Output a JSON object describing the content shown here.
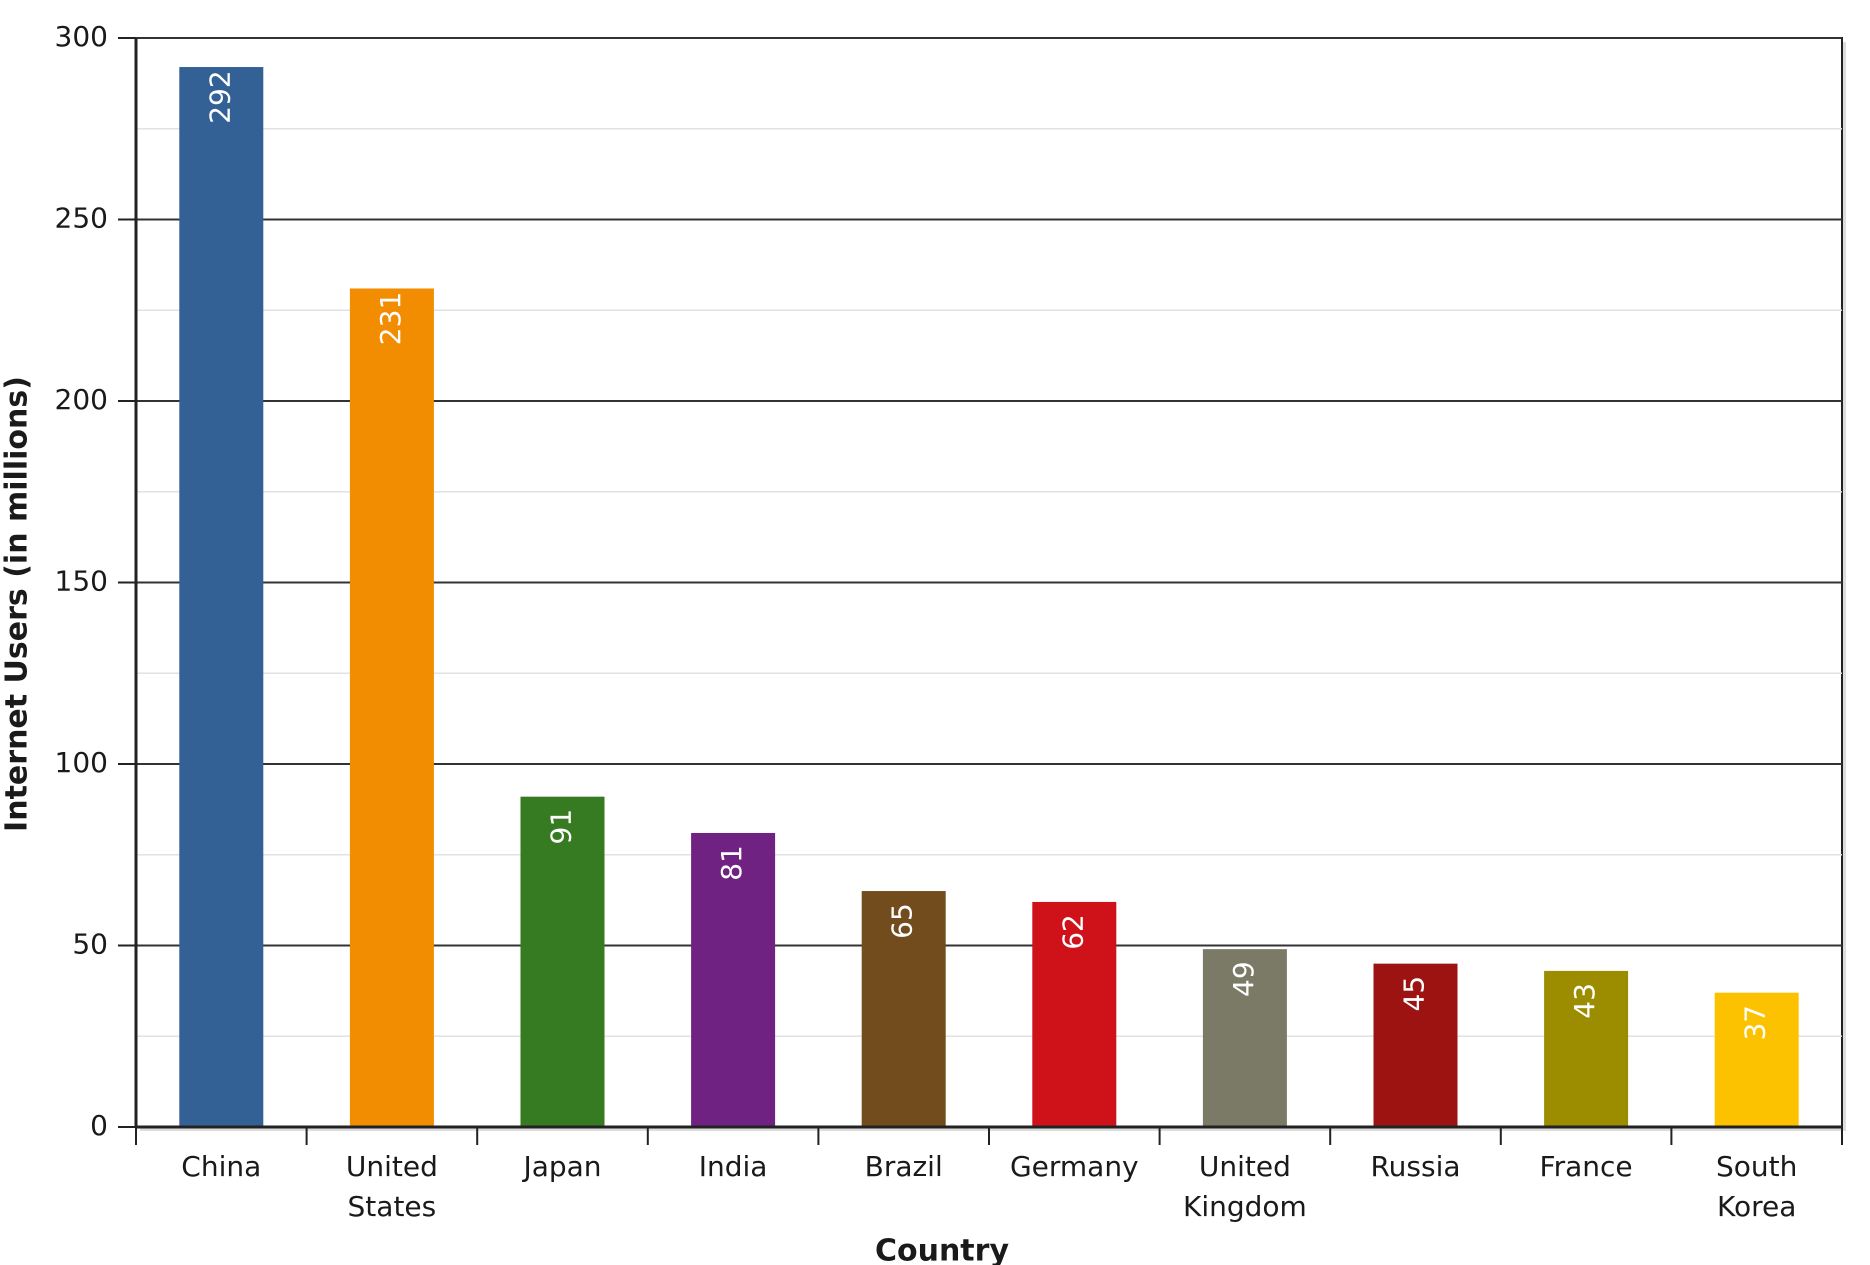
{
  "chart_data": {
    "type": "bar",
    "categories": [
      "China",
      "United States",
      "Japan",
      "India",
      "Brazil",
      "Germany",
      "United Kingdom",
      "Russia",
      "France",
      "South Korea"
    ],
    "values": [
      292,
      231,
      91,
      81,
      65,
      62,
      49,
      45,
      43,
      37
    ],
    "colors": [
      "#336196",
      "#f28c00",
      "#367b22",
      "#702282",
      "#734c1d",
      "#cf1219",
      "#7a7a66",
      "#9c1312",
      "#9c8c00",
      "#fcc200"
    ],
    "x_label": "Country",
    "y_label": "Internet Users (in millions)",
    "ylim": [
      0,
      300
    ],
    "yticks": [
      0,
      50,
      100,
      150,
      200,
      250,
      300
    ],
    "grid": true
  }
}
